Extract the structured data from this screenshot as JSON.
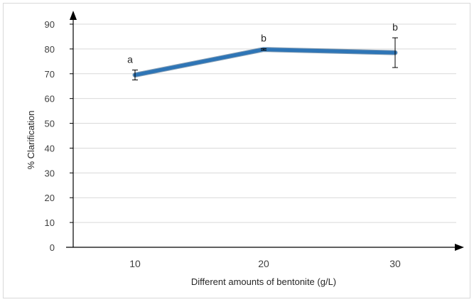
{
  "chart_data": {
    "type": "line",
    "title": "",
    "xlabel": "Different amounts of bentonite (g/L)",
    "ylabel": "% Clarification",
    "categories": [
      "10",
      "20",
      "30"
    ],
    "series": [
      {
        "values": [
          69.5,
          79.8,
          78.5
        ],
        "error": [
          2.0,
          0.3,
          6.0
        ],
        "labels": [
          "a",
          "b",
          "b"
        ],
        "color": "#2e75b6"
      }
    ],
    "ylim": [
      0,
      90
    ],
    "yticks": [
      "0",
      "10",
      "20",
      "30",
      "40",
      "50",
      "60",
      "70",
      "80",
      "90"
    ],
    "grid": true
  }
}
